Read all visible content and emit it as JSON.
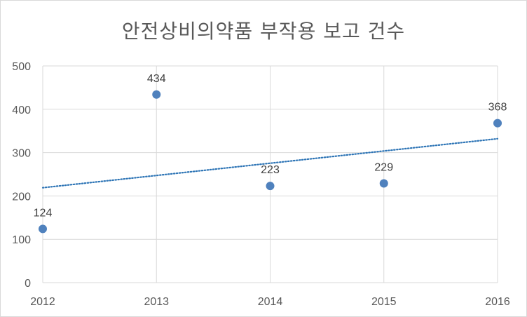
{
  "chart_data": {
    "type": "scatter",
    "title": "안전상비의약품 부작용 보고 건수",
    "xlabel": "",
    "ylabel": "",
    "x": [
      2012,
      2013,
      2014,
      2015,
      2016
    ],
    "y": [
      124,
      434,
      223,
      229,
      368
    ],
    "data_labels": [
      "124",
      "434",
      "223",
      "229",
      "368"
    ],
    "xlim": [
      2012,
      2016
    ],
    "ylim": [
      0,
      500
    ],
    "x_ticks": [
      "2012",
      "2013",
      "2014",
      "2015",
      "2016"
    ],
    "y_ticks": [
      "0",
      "100",
      "200",
      "300",
      "400",
      "500"
    ],
    "trendline": {
      "type": "linear",
      "style": "dotted",
      "start": [
        2012,
        219
      ],
      "end": [
        2016,
        332
      ]
    },
    "grid": true,
    "legend": "none",
    "colors": {
      "marker": "#4f81bd",
      "trendline": "#2e75b6",
      "grid": "#d9d9d9",
      "text": "#595959"
    }
  }
}
